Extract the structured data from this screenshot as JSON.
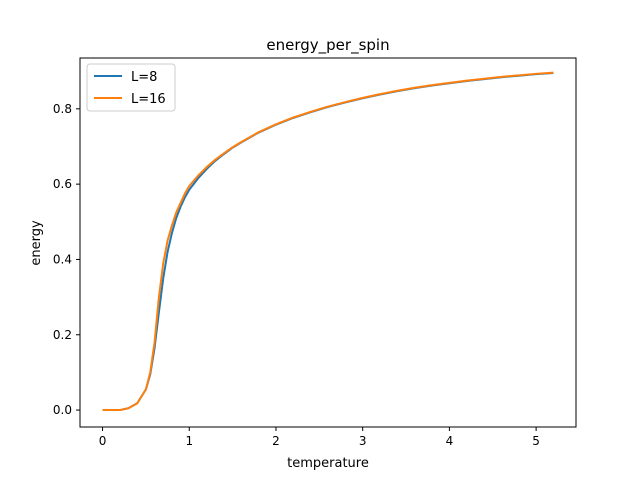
{
  "chart_data": {
    "type": "line",
    "title": "energy_per_spin",
    "xlabel": "temperature",
    "ylabel": "energy",
    "xlim": [
      -0.26,
      5.46
    ],
    "ylim": [
      -0.045,
      0.935
    ],
    "xticks": [
      0,
      1,
      2,
      3,
      4,
      5
    ],
    "yticks": [
      0.0,
      0.2,
      0.4,
      0.6,
      0.8
    ],
    "xtick_labels": [
      "0",
      "1",
      "2",
      "3",
      "4",
      "5"
    ],
    "ytick_labels": [
      "0.0",
      "0.2",
      "0.4",
      "0.6",
      "0.8"
    ],
    "grid": false,
    "legend_position": "top-left",
    "series": [
      {
        "name": "L=8",
        "color": "#1f77b4",
        "x": [
          0.0,
          0.1,
          0.2,
          0.3,
          0.4,
          0.5,
          0.55,
          0.6,
          0.65,
          0.7,
          0.75,
          0.8,
          0.85,
          0.9,
          0.95,
          1.0,
          1.1,
          1.2,
          1.3,
          1.4,
          1.5,
          1.6,
          1.8,
          2.0,
          2.2,
          2.4,
          2.6,
          2.8,
          3.0,
          3.2,
          3.4,
          3.6,
          3.8,
          4.0,
          4.2,
          4.4,
          4.6,
          4.8,
          5.0,
          5.2
        ],
        "y": [
          0.0,
          0.0,
          0.0,
          0.005,
          0.018,
          0.055,
          0.095,
          0.165,
          0.26,
          0.35,
          0.42,
          0.47,
          0.51,
          0.54,
          0.565,
          0.585,
          0.615,
          0.64,
          0.662,
          0.68,
          0.697,
          0.711,
          0.737,
          0.758,
          0.776,
          0.791,
          0.805,
          0.817,
          0.828,
          0.838,
          0.847,
          0.855,
          0.862,
          0.868,
          0.874,
          0.879,
          0.884,
          0.888,
          0.892,
          0.895
        ]
      },
      {
        "name": "L=16",
        "color": "#ff7f0e",
        "x": [
          0.0,
          0.1,
          0.2,
          0.3,
          0.4,
          0.5,
          0.55,
          0.6,
          0.65,
          0.7,
          0.75,
          0.8,
          0.85,
          0.9,
          0.95,
          1.0,
          1.1,
          1.2,
          1.3,
          1.4,
          1.5,
          1.6,
          1.8,
          2.0,
          2.2,
          2.4,
          2.6,
          2.8,
          3.0,
          3.2,
          3.4,
          3.6,
          3.8,
          4.0,
          4.2,
          4.4,
          4.6,
          4.8,
          5.0,
          5.2
        ],
        "y": [
          0.0,
          0.0,
          0.0,
          0.005,
          0.018,
          0.055,
          0.1,
          0.18,
          0.3,
          0.39,
          0.45,
          0.49,
          0.525,
          0.55,
          0.575,
          0.595,
          0.622,
          0.645,
          0.665,
          0.682,
          0.698,
          0.712,
          0.738,
          0.759,
          0.777,
          0.792,
          0.806,
          0.818,
          0.829,
          0.839,
          0.848,
          0.856,
          0.863,
          0.869,
          0.875,
          0.88,
          0.885,
          0.889,
          0.893,
          0.896
        ]
      }
    ]
  }
}
